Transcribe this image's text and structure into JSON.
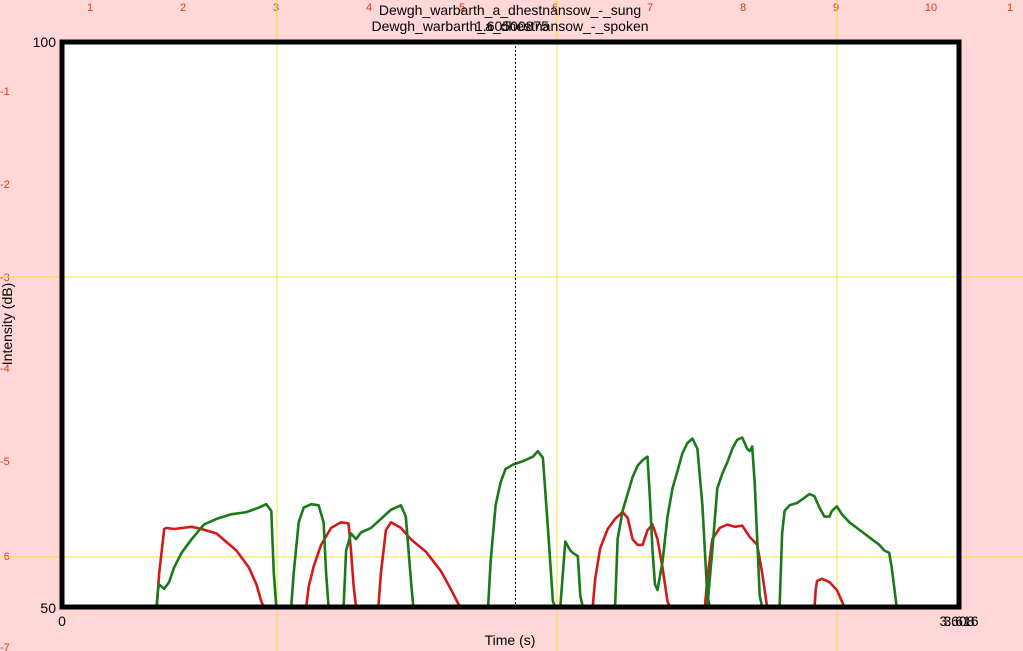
{
  "chart_data": {
    "type": "line",
    "title_lines": [
      "Dewgh_warbarth_a_dhestnansow_-_sung",
      "Dewgh_warbarth_a_dhestnansow_-_spoken"
    ],
    "cursor_readout": "1.60500875",
    "xlabel": "Time (s)",
    "ylabel": "Intensity (dB)",
    "x_tick_left": "0",
    "x_tick_right_labels": [
      "3.608",
      "3.616"
    ],
    "y_tick_top": "100",
    "y_tick_bottom": "50",
    "xlim": [
      0,
      3.6
    ],
    "ylim": [
      50,
      100
    ],
    "cursor_x": 1.82,
    "grid": true,
    "ruler_top_labels": [
      "1",
      "2",
      "3",
      "4",
      "5",
      "6",
      "7",
      "8",
      "9",
      "10",
      "1"
    ],
    "ruler_left_labels": [
      "-1",
      "-2",
      "-3",
      "-4",
      "-5",
      "-6",
      "-7"
    ],
    "series": [
      {
        "color": "#d21a1a",
        "segments": [
          [
            [
              0.38,
              50.0
            ],
            [
              0.39,
              53.0
            ],
            [
              0.41,
              56.9
            ],
            [
              0.42,
              57.0
            ],
            [
              0.45,
              56.9
            ],
            [
              0.52,
              57.1
            ],
            [
              0.56,
              56.9
            ],
            [
              0.62,
              56.5
            ],
            [
              0.7,
              55.0
            ],
            [
              0.75,
              53.5
            ],
            [
              0.78,
              52.0
            ],
            [
              0.8,
              50.5
            ],
            [
              0.81,
              50.0
            ]
          ],
          [
            [
              0.98,
              50.0
            ],
            [
              0.99,
              51.8
            ],
            [
              1.01,
              53.6
            ],
            [
              1.04,
              55.5
            ],
            [
              1.08,
              57.0
            ],
            [
              1.12,
              57.5
            ],
            [
              1.15,
              57.4
            ],
            [
              1.16,
              55.0
            ],
            [
              1.17,
              52.0
            ],
            [
              1.18,
              50.0
            ]
          ],
          [
            [
              1.27,
              50.0
            ],
            [
              1.28,
              53.0
            ],
            [
              1.3,
              56.8
            ],
            [
              1.32,
              57.5
            ],
            [
              1.36,
              57.0
            ],
            [
              1.4,
              56.0
            ],
            [
              1.46,
              54.9
            ],
            [
              1.52,
              53.2
            ],
            [
              1.56,
              51.6
            ],
            [
              1.59,
              50.3
            ],
            [
              1.6,
              50.0
            ]
          ],
          [
            [
              2.13,
              50.0
            ],
            [
              2.14,
              52.5
            ],
            [
              2.16,
              55.2
            ],
            [
              2.19,
              56.9
            ],
            [
              2.22,
              57.8
            ],
            [
              2.25,
              58.4
            ],
            [
              2.27,
              57.9
            ],
            [
              2.29,
              56.0
            ],
            [
              2.31,
              55.5
            ],
            [
              2.33,
              55.5
            ],
            [
              2.35,
              56.8
            ],
            [
              2.37,
              57.3
            ],
            [
              2.39,
              56.0
            ],
            [
              2.41,
              53.5
            ],
            [
              2.43,
              50.5
            ],
            [
              2.44,
              50.0
            ]
          ],
          [
            [
              2.58,
              50.0
            ],
            [
              2.59,
              52.5
            ],
            [
              2.61,
              56.0
            ],
            [
              2.64,
              57.0
            ],
            [
              2.67,
              57.3
            ],
            [
              2.7,
              57.1
            ],
            [
              2.73,
              57.2
            ],
            [
              2.76,
              56.2
            ],
            [
              2.79,
              55.5
            ],
            [
              2.81,
              53.0
            ],
            [
              2.83,
              50.0
            ]
          ],
          [
            [
              3.02,
              50.0
            ],
            [
              3.025,
              51.5
            ],
            [
              3.03,
              52.3
            ],
            [
              3.05,
              52.5
            ],
            [
              3.08,
              52.2
            ],
            [
              3.11,
              51.5
            ],
            [
              3.13,
              50.5
            ],
            [
              3.14,
              50.0
            ]
          ]
        ]
      },
      {
        "color": "#1a7a1a",
        "segments": [
          [
            [
              0.38,
              50.0
            ],
            [
              0.385,
              51.5
            ],
            [
              0.39,
              52.0
            ],
            [
              0.4,
              51.8
            ],
            [
              0.41,
              51.6
            ],
            [
              0.43,
              52.2
            ],
            [
              0.45,
              53.5
            ],
            [
              0.48,
              54.8
            ],
            [
              0.52,
              56.0
            ],
            [
              0.57,
              57.3
            ],
            [
              0.62,
              57.8
            ],
            [
              0.68,
              58.2
            ],
            [
              0.74,
              58.4
            ],
            [
              0.79,
              58.8
            ],
            [
              0.82,
              59.1
            ],
            [
              0.84,
              58.5
            ],
            [
              0.85,
              53.0
            ],
            [
              0.86,
              50.0
            ]
          ],
          [
            [
              0.92,
              50.0
            ],
            [
              0.93,
              53.0
            ],
            [
              0.95,
              57.5
            ],
            [
              0.97,
              58.8
            ],
            [
              1.0,
              59.1
            ],
            [
              1.03,
              59.0
            ],
            [
              1.05,
              57.5
            ],
            [
              1.06,
              53.0
            ],
            [
              1.07,
              50.0
            ]
          ],
          [
            [
              1.13,
              50.0
            ],
            [
              1.14,
              55.0
            ],
            [
              1.16,
              56.5
            ],
            [
              1.18,
              56.0
            ],
            [
              1.2,
              56.6
            ],
            [
              1.24,
              57.0
            ],
            [
              1.28,
              57.8
            ],
            [
              1.32,
              58.6
            ],
            [
              1.36,
              59.0
            ],
            [
              1.38,
              58.0
            ],
            [
              1.4,
              52.5
            ],
            [
              1.41,
              50.0
            ]
          ],
          [
            [
              1.71,
              50.0
            ],
            [
              1.72,
              54.0
            ],
            [
              1.74,
              59.0
            ],
            [
              1.76,
              61.0
            ],
            [
              1.78,
              62.2
            ],
            [
              1.81,
              62.6
            ],
            [
              1.85,
              62.9
            ],
            [
              1.89,
              63.3
            ],
            [
              1.91,
              63.8
            ],
            [
              1.93,
              63.2
            ],
            [
              1.95,
              57.0
            ],
            [
              1.97,
              50.5
            ],
            [
              1.98,
              50.0
            ]
          ],
          [
            [
              2.0,
              50.0
            ],
            [
              2.02,
              55.8
            ],
            [
              2.04,
              55.0
            ],
            [
              2.05,
              54.8
            ],
            [
              2.07,
              54.5
            ],
            [
              2.08,
              51.0
            ],
            [
              2.09,
              50.0
            ]
          ],
          [
            [
              2.22,
              50.0
            ],
            [
              2.23,
              56.0
            ],
            [
              2.25,
              58.5
            ],
            [
              2.27,
              60.0
            ],
            [
              2.29,
              61.5
            ],
            [
              2.31,
              62.5
            ],
            [
              2.33,
              63.0
            ],
            [
              2.35,
              63.3
            ],
            [
              2.36,
              59.5
            ],
            [
              2.37,
              55.0
            ],
            [
              2.38,
              52.0
            ],
            [
              2.39,
              51.5
            ],
            [
              2.41,
              54.0
            ],
            [
              2.43,
              58.0
            ],
            [
              2.45,
              60.5
            ],
            [
              2.47,
              62.0
            ],
            [
              2.49,
              63.6
            ],
            [
              2.51,
              64.5
            ],
            [
              2.53,
              64.9
            ],
            [
              2.55,
              64.0
            ],
            [
              2.57,
              59.0
            ],
            [
              2.59,
              51.0
            ],
            [
              2.6,
              50.0
            ]
          ],
          [
            [
              2.59,
              50.0
            ],
            [
              2.61,
              55.0
            ],
            [
              2.63,
              60.5
            ],
            [
              2.65,
              61.8
            ],
            [
              2.67,
              62.8
            ],
            [
              2.69,
              64.0
            ],
            [
              2.71,
              64.8
            ],
            [
              2.73,
              65.0
            ],
            [
              2.75,
              64.0
            ],
            [
              2.76,
              63.8
            ],
            [
              2.77,
              64.2
            ],
            [
              2.78,
              61.0
            ],
            [
              2.79,
              56.0
            ],
            [
              2.8,
              51.0
            ],
            [
              2.81,
              50.0
            ]
          ],
          [
            [
              2.88,
              50.0
            ],
            [
              2.89,
              56.5
            ],
            [
              2.9,
              58.5
            ],
            [
              2.92,
              59.0
            ],
            [
              2.95,
              59.2
            ],
            [
              2.97,
              59.5
            ],
            [
              3.0,
              60.0
            ],
            [
              3.02,
              59.8
            ],
            [
              3.04,
              58.8
            ],
            [
              3.06,
              58.0
            ],
            [
              3.08,
              58.0
            ],
            [
              3.09,
              58.5
            ],
            [
              3.11,
              58.9
            ],
            [
              3.13,
              58.2
            ],
            [
              3.16,
              57.5
            ],
            [
              3.19,
              57.0
            ],
            [
              3.22,
              56.5
            ],
            [
              3.25,
              56.0
            ],
            [
              3.28,
              55.5
            ],
            [
              3.3,
              55.0
            ],
            [
              3.32,
              54.8
            ],
            [
              3.33,
              53.5
            ],
            [
              3.35,
              50.0
            ]
          ]
        ]
      }
    ]
  }
}
